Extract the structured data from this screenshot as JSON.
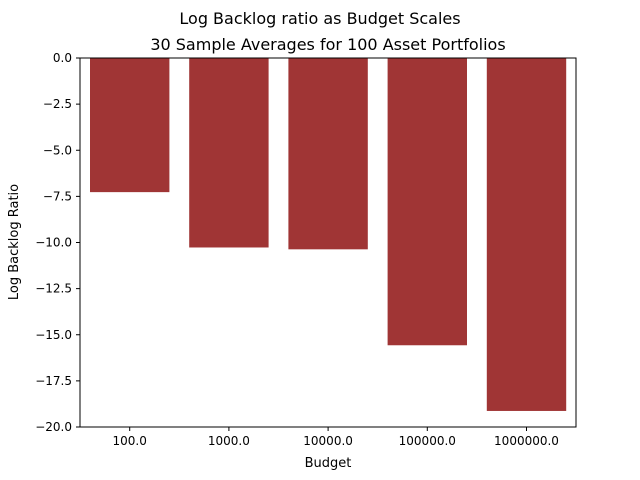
{
  "chart_data": {
    "type": "bar",
    "title": "Log Backlog ratio as Budget Scales",
    "subtitle": "30 Sample Averages for 100 Asset Portfolios",
    "xlabel": "Budget",
    "ylabel": "Log Backlog Ratio",
    "categories": [
      "100.0",
      "1000.0",
      "10000.0",
      "100000.0",
      "1000000.0"
    ],
    "values": [
      -7.27,
      -10.27,
      -10.37,
      -15.57,
      -19.13
    ],
    "ylim": [
      -20,
      0
    ],
    "y_ticks": [
      0.0,
      -2.5,
      -5.0,
      -7.5,
      -10.0,
      -12.5,
      -15.0,
      -17.5,
      -20.0
    ],
    "y_tick_labels": [
      "0.0",
      "−2.5",
      "−5.0",
      "−7.5",
      "−10.0",
      "−12.5",
      "−15.0",
      "−17.5",
      "−20.0"
    ],
    "grid": false,
    "legend": "none",
    "bar_color": "#a03535"
  }
}
